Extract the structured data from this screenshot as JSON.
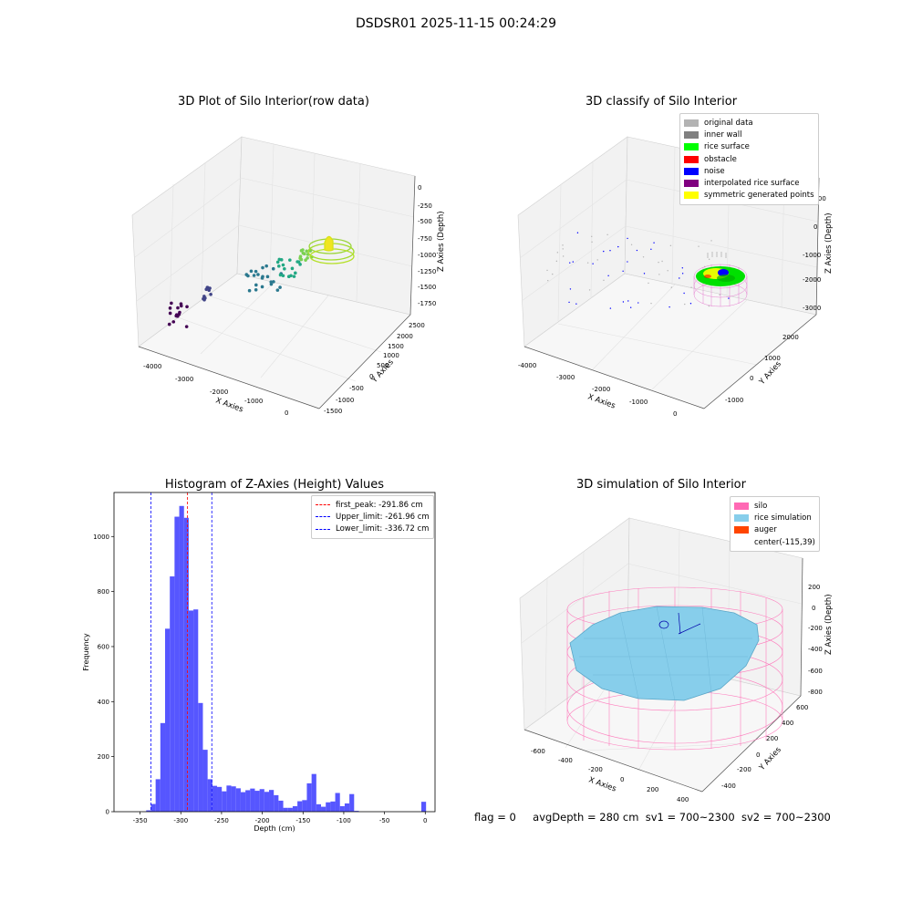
{
  "page": {
    "title": "DSDSR01 2025-11-15 00:24:29",
    "status": {
      "flag": "flag = 0",
      "avg_depth": "avgDepth = 280 cm",
      "sv1": "sv1 = 700~2300",
      "sv2": "sv2 = 700~2300"
    }
  },
  "chart_data": [
    {
      "type": "scatter",
      "title": "3D Plot of Silo Interior(row data)",
      "xlabel": "X Axies",
      "ylabel": "Y Axies",
      "zlabel": "Z Axies (Depth)",
      "x_ticks": [
        "-4000",
        "-3000",
        "-2000",
        "-1000",
        "0"
      ],
      "y_ticks": [
        "-1500",
        "-1000",
        "-500",
        "0",
        "500",
        "1000",
        "1500",
        "2000",
        "2500"
      ],
      "z_ticks": [
        "0",
        "-250",
        "-500",
        "-750",
        "-1000",
        "-1250",
        "-1500",
        "-1750"
      ],
      "colormap": "viridis",
      "grid": true
    },
    {
      "type": "scatter",
      "title": "3D classify of Silo Interior",
      "xlabel": "X Axies",
      "ylabel": "Y Axies",
      "zlabel": "Z Axies (Depth)",
      "x_ticks": [
        "-4000",
        "-3000",
        "-2000",
        "-1000",
        "0"
      ],
      "y_ticks": [
        "-1000",
        "0",
        "1000",
        "2000"
      ],
      "z_ticks": [
        "1000",
        "0",
        "-1000",
        "-2000",
        "-3000"
      ],
      "legend": [
        {
          "name": "original data",
          "color": "#b3b3b3"
        },
        {
          "name": "inner wall",
          "color": "#808080"
        },
        {
          "name": "rice surface",
          "color": "#00ff00"
        },
        {
          "name": "obstacle",
          "color": "#ff0000"
        },
        {
          "name": "noise",
          "color": "#0000ff"
        },
        {
          "name": "interpolated rice surface",
          "color": "#800080"
        },
        {
          "name": "symmetric generated points",
          "color": "#ffff00"
        }
      ],
      "legend_position": "top-right",
      "grid": true
    },
    {
      "type": "bar",
      "title": "Histogram of Z-Axies (Height) Values",
      "xlabel": "Depth (cm)",
      "ylabel": "Frequency",
      "xlim": [
        -382,
        12
      ],
      "ylim": [
        0,
        1160
      ],
      "x_ticks": [
        -350,
        -300,
        -250,
        -200,
        -150,
        -100,
        -50,
        0
      ],
      "y_ticks": [
        0,
        200,
        400,
        600,
        800,
        1000
      ],
      "bin_width": 5.8,
      "bins": [
        [
          -342.5,
          5
        ],
        [
          -336.7,
          28
        ],
        [
          -330.9,
          118
        ],
        [
          -325.1,
          322
        ],
        [
          -319.3,
          665
        ],
        [
          -313.5,
          855
        ],
        [
          -307.7,
          1072
        ],
        [
          -301.9,
          1111
        ],
        [
          -296.1,
          1068
        ],
        [
          -290.3,
          731
        ],
        [
          -284.5,
          735
        ],
        [
          -278.7,
          395
        ],
        [
          -272.9,
          225
        ],
        [
          -267.1,
          118
        ],
        [
          -261.3,
          94
        ],
        [
          -255.5,
          90
        ],
        [
          -249.7,
          74
        ],
        [
          -243.9,
          95
        ],
        [
          -238.1,
          92
        ],
        [
          -232.3,
          85
        ],
        [
          -226.5,
          71
        ],
        [
          -220.7,
          78
        ],
        [
          -214.9,
          84
        ],
        [
          -209.1,
          76
        ],
        [
          -203.3,
          82
        ],
        [
          -197.5,
          72
        ],
        [
          -191.7,
          79
        ],
        [
          -185.9,
          60
        ],
        [
          -180.1,
          40
        ],
        [
          -174.3,
          14
        ],
        [
          -168.5,
          14
        ],
        [
          -162.7,
          20
        ],
        [
          -156.9,
          38
        ],
        [
          -151.1,
          42
        ],
        [
          -145.3,
          103
        ],
        [
          -139.5,
          137
        ],
        [
          -133.7,
          27
        ],
        [
          -127.9,
          18
        ],
        [
          -122.1,
          34
        ],
        [
          -116.3,
          37
        ],
        [
          -110.5,
          68
        ],
        [
          -104.7,
          20
        ],
        [
          -98.9,
          30
        ],
        [
          -93.1,
          64
        ],
        [
          -87.3,
          3
        ],
        [
          -4.8,
          36
        ]
      ],
      "bar_color": "#4d4dff",
      "lines": [
        {
          "label": "first_peak: -291.86 cm",
          "x": -291.86,
          "color": "#ff0000"
        },
        {
          "label": "Upper_limit: -261.96 cm",
          "x": -261.96,
          "color": "#0000ff"
        },
        {
          "label": "Lower_limit: -336.72 cm",
          "x": -336.72,
          "color": "#0000ff"
        }
      ],
      "legend_position": "top-right"
    },
    {
      "type": "scatter",
      "title": "3D simulation of Silo Interior",
      "xlabel": "X Axies",
      "ylabel": "Y Axies",
      "zlabel": "Z Axies (Depth)",
      "x_ticks": [
        "-600",
        "-400",
        "-200",
        "0",
        "200",
        "400"
      ],
      "y_ticks": [
        "-400",
        "-200",
        "0",
        "200",
        "400",
        "600"
      ],
      "z_ticks": [
        "200",
        "0",
        "-200",
        "-400",
        "-600",
        "-800"
      ],
      "legend": [
        {
          "name": "silo",
          "color": "#ff69b4"
        },
        {
          "name": "rice simulation",
          "color": "#87ceeb"
        },
        {
          "name": "auger",
          "color": "#ff4500"
        },
        {
          "name": "center(-115,39)",
          "color": ""
        }
      ],
      "legend_position": "top-right",
      "grid": true
    }
  ]
}
